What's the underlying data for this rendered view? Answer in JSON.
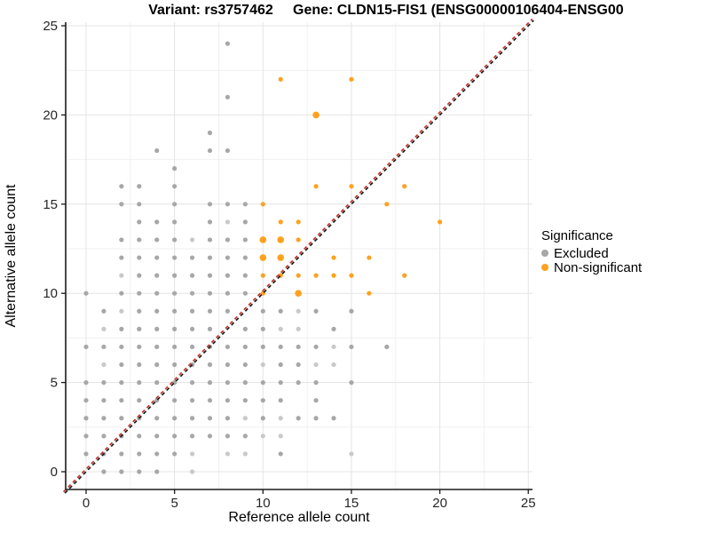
{
  "titles": {
    "variant": "Variant: rs3757462",
    "gene": "Gene: CLDN15-FIS1 (ENSG00000106404-ENSG00"
  },
  "chart_data": {
    "type": "scatter",
    "xlabel": "Reference allele count",
    "ylabel": "Alternative allele count",
    "xlim": [
      -1.2,
      25.3
    ],
    "ylim": [
      -1.0,
      25.2
    ],
    "x_ticks": [
      0,
      5,
      10,
      15,
      20,
      25
    ],
    "y_ticks": [
      0,
      5,
      10,
      15,
      20,
      25
    ],
    "minor_grid_step": 2.5,
    "grid": {
      "major_color": "#E4E4E4",
      "minor_color": "#F0F0F0"
    },
    "identity_line": {
      "type": "y=x",
      "style": "dashed",
      "colors": [
        "#1A1A1A",
        "#C4342B"
      ]
    },
    "legend": {
      "title": "Significance",
      "position": "right",
      "items": [
        {
          "label": "Excluded",
          "color": "#A7A7A7"
        },
        {
          "label": "Non-significant",
          "color": "#FFA11E"
        }
      ]
    },
    "series": [
      {
        "name": "Excluded",
        "color": "#A7A7A7",
        "light_color": "#C9C9C9",
        "points": [
          [
            8,
            24
          ],
          [
            8,
            21
          ],
          [
            7,
            19
          ],
          [
            4,
            18
          ],
          [
            7,
            18
          ],
          [
            8,
            18
          ],
          [
            5,
            17
          ],
          [
            2,
            16
          ],
          [
            3,
            16
          ],
          [
            5,
            16
          ],
          [
            2,
            15
          ],
          [
            3,
            15
          ],
          [
            5,
            15
          ],
          [
            7,
            15
          ],
          [
            8,
            15
          ],
          [
            9,
            15
          ],
          [
            3,
            14
          ],
          [
            4,
            14
          ],
          [
            5,
            14
          ],
          [
            7,
            14
          ],
          [
            8,
            14,
            "l"
          ],
          [
            9,
            14
          ],
          [
            2,
            13
          ],
          [
            3,
            13
          ],
          [
            4,
            13
          ],
          [
            5,
            13
          ],
          [
            6,
            13,
            "l"
          ],
          [
            7,
            13
          ],
          [
            8,
            13
          ],
          [
            9,
            13
          ],
          [
            2,
            12
          ],
          [
            3,
            12
          ],
          [
            4,
            12
          ],
          [
            5,
            12
          ],
          [
            6,
            12
          ],
          [
            7,
            12
          ],
          [
            8,
            12
          ],
          [
            9,
            12
          ],
          [
            2,
            11,
            "l"
          ],
          [
            3,
            11
          ],
          [
            4,
            11
          ],
          [
            5,
            11
          ],
          [
            6,
            11
          ],
          [
            7,
            11
          ],
          [
            8,
            11
          ],
          [
            9,
            11
          ],
          [
            0,
            10
          ],
          [
            2,
            10
          ],
          [
            3,
            10
          ],
          [
            4,
            10
          ],
          [
            5,
            10
          ],
          [
            6,
            10
          ],
          [
            7,
            10
          ],
          [
            8,
            10
          ],
          [
            9,
            10
          ],
          [
            1,
            9
          ],
          [
            2,
            9,
            "l"
          ],
          [
            3,
            9
          ],
          [
            4,
            9
          ],
          [
            5,
            9
          ],
          [
            6,
            9
          ],
          [
            7,
            9
          ],
          [
            8,
            9
          ],
          [
            10,
            9
          ],
          [
            11,
            9
          ],
          [
            12,
            9,
            "l"
          ],
          [
            13,
            9
          ],
          [
            15,
            9
          ],
          [
            1,
            8,
            "l"
          ],
          [
            2,
            8
          ],
          [
            3,
            8
          ],
          [
            4,
            8
          ],
          [
            5,
            8
          ],
          [
            6,
            8
          ],
          [
            7,
            8
          ],
          [
            9,
            8
          ],
          [
            10,
            8
          ],
          [
            11,
            8,
            "l"
          ],
          [
            12,
            8,
            "l"
          ],
          [
            14,
            8
          ],
          [
            0,
            7
          ],
          [
            1,
            7
          ],
          [
            2,
            7
          ],
          [
            3,
            7
          ],
          [
            4,
            7
          ],
          [
            5,
            7
          ],
          [
            6,
            7
          ],
          [
            7,
            7
          ],
          [
            8,
            7
          ],
          [
            9,
            7
          ],
          [
            10,
            7
          ],
          [
            11,
            7
          ],
          [
            12,
            7
          ],
          [
            13,
            7
          ],
          [
            14,
            7,
            "l"
          ],
          [
            15,
            7
          ],
          [
            17,
            7
          ],
          [
            1,
            6,
            "l"
          ],
          [
            2,
            6
          ],
          [
            3,
            6
          ],
          [
            4,
            6
          ],
          [
            5,
            6
          ],
          [
            6,
            6
          ],
          [
            7,
            6
          ],
          [
            8,
            6
          ],
          [
            9,
            6
          ],
          [
            10,
            6,
            "l"
          ],
          [
            11,
            6
          ],
          [
            12,
            6
          ],
          [
            13,
            6,
            "l"
          ],
          [
            14,
            6,
            "l"
          ],
          [
            0,
            5
          ],
          [
            1,
            5
          ],
          [
            2,
            5
          ],
          [
            3,
            5
          ],
          [
            4,
            5
          ],
          [
            5,
            5
          ],
          [
            6,
            5
          ],
          [
            7,
            5
          ],
          [
            8,
            5
          ],
          [
            9,
            5
          ],
          [
            10,
            5
          ],
          [
            11,
            5
          ],
          [
            12,
            5
          ],
          [
            13,
            5
          ],
          [
            15,
            5
          ],
          [
            0,
            4
          ],
          [
            1,
            4
          ],
          [
            2,
            4
          ],
          [
            3,
            4
          ],
          [
            4,
            4
          ],
          [
            5,
            4
          ],
          [
            6,
            4
          ],
          [
            7,
            4
          ],
          [
            8,
            4
          ],
          [
            9,
            4
          ],
          [
            10,
            4
          ],
          [
            11,
            4
          ],
          [
            13,
            4
          ],
          [
            0,
            3
          ],
          [
            1,
            3
          ],
          [
            2,
            3
          ],
          [
            3,
            3
          ],
          [
            4,
            3
          ],
          [
            5,
            3
          ],
          [
            6,
            3
          ],
          [
            7,
            3
          ],
          [
            8,
            3
          ],
          [
            9,
            3,
            "l"
          ],
          [
            10,
            3
          ],
          [
            11,
            3,
            "l"
          ],
          [
            12,
            3
          ],
          [
            13,
            3
          ],
          [
            14,
            3
          ],
          [
            0,
            2
          ],
          [
            1,
            2
          ],
          [
            2,
            2
          ],
          [
            3,
            2
          ],
          [
            4,
            2
          ],
          [
            5,
            2
          ],
          [
            6,
            2
          ],
          [
            7,
            2
          ],
          [
            8,
            2
          ],
          [
            9,
            2
          ],
          [
            10,
            2,
            "l"
          ],
          [
            11,
            2,
            "l"
          ],
          [
            0,
            1
          ],
          [
            1,
            1
          ],
          [
            2,
            1
          ],
          [
            3,
            1
          ],
          [
            4,
            1
          ],
          [
            5,
            1
          ],
          [
            6,
            1,
            "l"
          ],
          [
            8,
            1,
            "l"
          ],
          [
            9,
            1,
            "l"
          ],
          [
            11,
            1
          ],
          [
            15,
            1,
            "l"
          ],
          [
            1,
            0
          ],
          [
            2,
            0
          ],
          [
            3,
            0
          ],
          [
            4,
            0
          ],
          [
            6,
            0,
            "l"
          ]
        ]
      },
      {
        "name": "Non-significant",
        "color": "#FFA11E",
        "light_color": "#FFB64F",
        "points": [
          [
            11,
            22
          ],
          [
            15,
            22
          ],
          [
            13,
            20,
            "b"
          ],
          [
            13,
            16
          ],
          [
            15,
            16
          ],
          [
            18,
            16
          ],
          [
            10,
            15
          ],
          [
            17,
            15
          ],
          [
            11,
            14
          ],
          [
            12,
            14
          ],
          [
            20,
            14
          ],
          [
            10,
            13,
            "b"
          ],
          [
            11,
            13,
            "b"
          ],
          [
            12,
            13
          ],
          [
            10,
            12,
            "b"
          ],
          [
            11,
            12,
            "b"
          ],
          [
            14,
            12
          ],
          [
            16,
            12
          ],
          [
            10,
            11
          ],
          [
            11,
            11
          ],
          [
            12,
            11
          ],
          [
            13,
            11
          ],
          [
            14,
            11
          ],
          [
            15,
            11
          ],
          [
            18,
            11
          ],
          [
            10,
            10
          ],
          [
            12,
            10,
            "b"
          ],
          [
            16,
            10
          ]
        ]
      }
    ]
  }
}
